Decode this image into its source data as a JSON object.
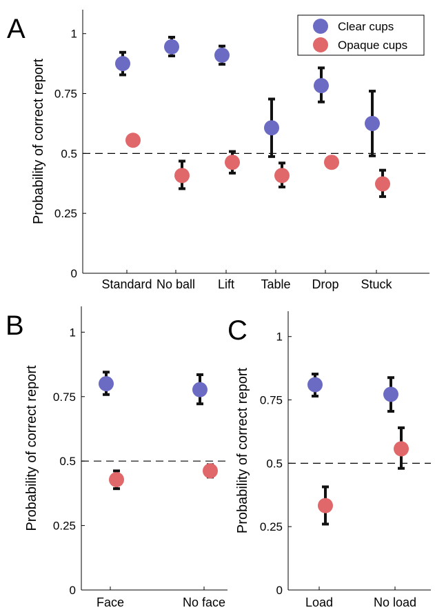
{
  "colors": {
    "clear": "#6b6bc4",
    "opaque": "#e0686b",
    "error_bar": "#111111",
    "axis": "#000000",
    "reference_line": "#000000"
  },
  "chart_data": [
    {
      "panel_label": "A",
      "type": "scatter",
      "ylabel": "Probability of correct report",
      "xlabel": "",
      "ylim": [
        0,
        1.1
      ],
      "yticks": [
        "0",
        "0.25",
        "0.5",
        "0.75",
        "1"
      ],
      "ytick_values": [
        0,
        0.25,
        0.5,
        0.75,
        1
      ],
      "reference_line": 0.5,
      "categories": [
        "Standard",
        "No ball",
        "Lift",
        "Table",
        "Drop",
        "Stuck"
      ],
      "legend": {
        "placement": "top-right",
        "entries": [
          "Clear cups",
          "Opaque cups"
        ]
      },
      "series": [
        {
          "name": "Clear cups",
          "values": [
            0.875,
            0.945,
            0.91,
            0.607,
            0.783,
            0.625
          ],
          "err_low": [
            0.828,
            0.907,
            0.872,
            0.487,
            0.715,
            0.49
          ],
          "err_high": [
            0.922,
            0.985,
            0.948,
            0.727,
            0.857,
            0.76
          ]
        },
        {
          "name": "Opaque cups",
          "values": [
            0.555,
            0.408,
            0.463,
            0.408,
            0.463,
            0.373
          ],
          "err_low": [
            0.535,
            0.353,
            0.418,
            0.36,
            0.463,
            0.32
          ],
          "err_high": [
            0.575,
            0.468,
            0.508,
            0.46,
            0.463,
            0.43
          ]
        }
      ]
    },
    {
      "panel_label": "B",
      "type": "scatter",
      "ylabel": "Probability of correct report",
      "xlabel": "",
      "ylim": [
        0,
        1.1
      ],
      "yticks": [
        "0",
        "0.25",
        "0.5",
        "0.75",
        "1"
      ],
      "ytick_values": [
        0,
        0.25,
        0.5,
        0.75,
        1
      ],
      "reference_line": 0.5,
      "categories": [
        "Face",
        "No face"
      ],
      "series": [
        {
          "name": "Clear cups",
          "values": [
            0.8,
            0.777
          ],
          "err_low": [
            0.758,
            0.722
          ],
          "err_high": [
            0.845,
            0.835
          ]
        },
        {
          "name": "Opaque cups",
          "values": [
            0.428,
            0.462
          ],
          "err_low": [
            0.393,
            0.438
          ],
          "err_high": [
            0.462,
            0.486
          ]
        }
      ]
    },
    {
      "panel_label": "C",
      "type": "scatter",
      "ylabel": "Probability of correct report",
      "xlabel": "",
      "ylim": [
        0,
        1.1
      ],
      "yticks": [
        "0",
        "0.25",
        "0.5",
        "0.75",
        "1"
      ],
      "ytick_values": [
        0,
        0.25,
        0.5,
        0.75,
        1
      ],
      "reference_line": 0.5,
      "categories": [
        "Load",
        "No load"
      ],
      "series": [
        {
          "name": "Clear cups",
          "values": [
            0.81,
            0.772
          ],
          "err_low": [
            0.765,
            0.705
          ],
          "err_high": [
            0.852,
            0.838
          ]
        },
        {
          "name": "Opaque cups",
          "values": [
            0.333,
            0.557
          ],
          "err_low": [
            0.26,
            0.48
          ],
          "err_high": [
            0.407,
            0.64
          ]
        }
      ]
    }
  ]
}
